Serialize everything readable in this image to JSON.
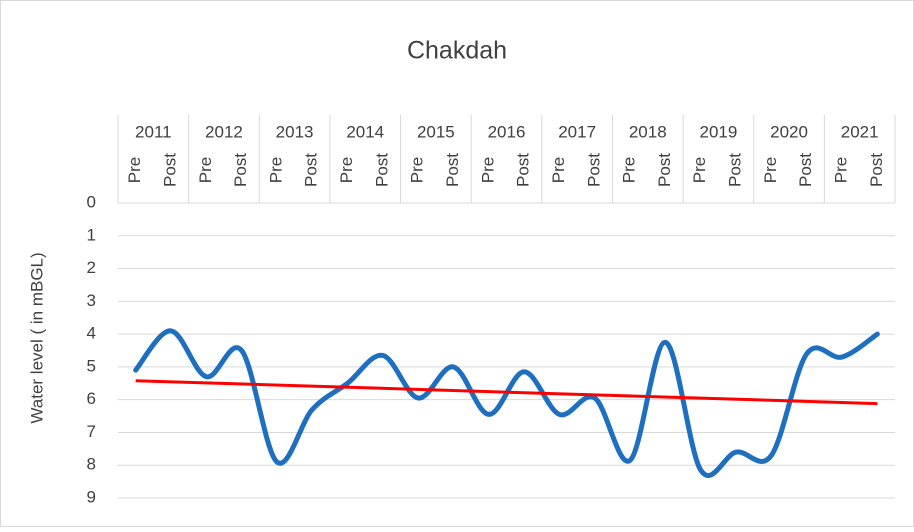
{
  "chart_data": {
    "type": "line",
    "title": "Chakdah",
    "ylabel": "Water level ( in mBGL)",
    "groups": [
      "2011",
      "2012",
      "2013",
      "2014",
      "2015",
      "2016",
      "2017",
      "2018",
      "2019",
      "2020",
      "2021"
    ],
    "categories": [
      "Pre",
      "Post",
      "Pre",
      "Post",
      "Pre",
      "Post",
      "Pre",
      "Post",
      "Pre",
      "Post",
      "Pre",
      "Post",
      "Pre",
      "Post",
      "Pre",
      "Post",
      "Pre",
      "Post",
      "Pre",
      "Post",
      "Pre",
      "Post"
    ],
    "series": [
      {
        "color": "#1f6fc0",
        "values": [
          5.1,
          3.9,
          5.3,
          4.5,
          7.9,
          6.3,
          5.5,
          4.65,
          5.95,
          5.0,
          6.45,
          5.15,
          6.45,
          5.95,
          7.85,
          4.25,
          8.15,
          7.6,
          7.7,
          4.6,
          4.7,
          4.0
        ]
      }
    ],
    "trendline": {
      "type": "linear",
      "color": "#ff0000"
    },
    "ylim": [
      0,
      9
    ],
    "yticks": [
      0,
      1,
      2,
      3,
      4,
      5,
      6,
      7,
      8,
      9
    ],
    "y_inverted": true,
    "grid": true
  }
}
